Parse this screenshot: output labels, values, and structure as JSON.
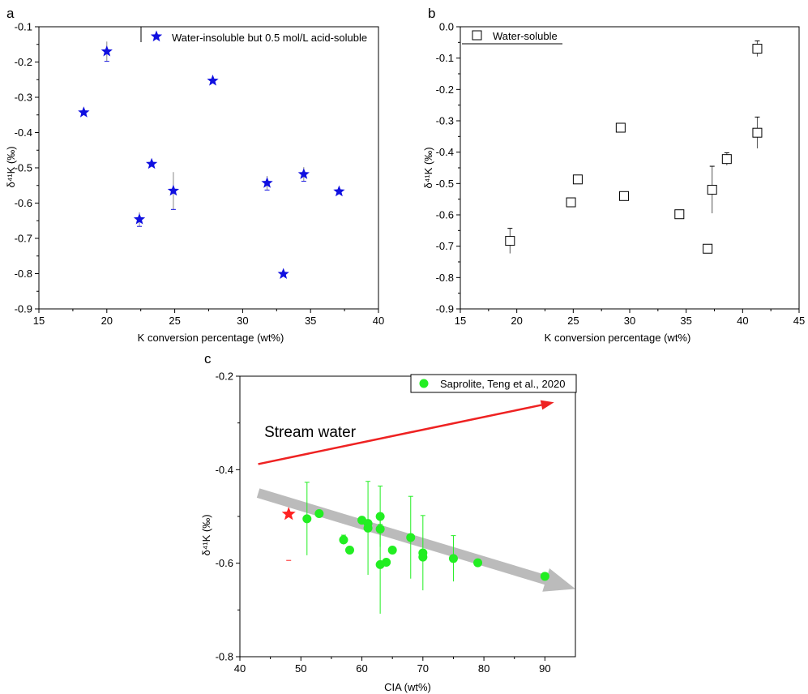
{
  "chart_data": [
    {
      "id": "a",
      "type": "scatter",
      "panel_label": "a",
      "xlabel": "K conversion  percentage  (wt%)",
      "ylabel": "δ⁴¹K (‰)",
      "xlim": [
        15,
        40
      ],
      "ylim": [
        -0.9,
        -0.1
      ],
      "xticks": [
        15,
        20,
        25,
        30,
        35,
        40
      ],
      "yticks": [
        -0.9,
        -0.8,
        -0.7,
        -0.6,
        -0.5,
        -0.4,
        -0.3,
        -0.2,
        -0.1
      ],
      "xtick_labels": [
        "15",
        "20",
        "25",
        "30",
        "35",
        "40"
      ],
      "ytick_labels": [
        "-0.9",
        "-0.8",
        "-0.7",
        "-0.6",
        "-0.5",
        "-0.4",
        "-0.3",
        "-0.2",
        "-0.1"
      ],
      "legend": "Water-insoluble but 0.5 mol/L acid-soluble",
      "marker": "star",
      "color": "#1010e0",
      "points": [
        {
          "x": 18.3,
          "y": -0.343,
          "err": 0.004
        },
        {
          "x": 20.0,
          "y": -0.17,
          "err": 0.028
        },
        {
          "x": 22.4,
          "y": -0.646,
          "err": 0.02
        },
        {
          "x": 23.3,
          "y": -0.489,
          "err": 0.005
        },
        {
          "x": 24.9,
          "y": -0.565,
          "err": 0.053
        },
        {
          "x": 27.8,
          "y": -0.253,
          "err": 0.004
        },
        {
          "x": 31.8,
          "y": -0.543,
          "err": 0.02
        },
        {
          "x": 33.0,
          "y": -0.801,
          "err": 0.004
        },
        {
          "x": 34.5,
          "y": -0.518,
          "err": 0.02
        },
        {
          "x": 37.1,
          "y": -0.567,
          "err": 0.004
        }
      ]
    },
    {
      "id": "b",
      "type": "scatter",
      "panel_label": "b",
      "xlabel": "K conversion  percentage  (wt%)",
      "ylabel": "δ⁴¹K (‰)",
      "xlim": [
        15,
        45
      ],
      "ylim": [
        -0.9,
        0.0
      ],
      "xticks": [
        15,
        20,
        25,
        30,
        35,
        40,
        45
      ],
      "yticks": [
        -0.9,
        -0.8,
        -0.7,
        -0.6,
        -0.5,
        -0.4,
        -0.3,
        -0.2,
        -0.1,
        0.0
      ],
      "xtick_labels": [
        "15",
        "20",
        "25",
        "30",
        "35",
        "40",
        "45"
      ],
      "ytick_labels": [
        "-0.9",
        "-0.8",
        "-0.7",
        "-0.6",
        "-0.5",
        "-0.4",
        "-0.3",
        "-0.2",
        "-0.1",
        "0.0"
      ],
      "legend": "Water-soluble",
      "marker": "open-square",
      "color": "#000000",
      "points": [
        {
          "x": 19.4,
          "y": -0.683,
          "err": 0.04
        },
        {
          "x": 24.8,
          "y": -0.56,
          "err": 0.01
        },
        {
          "x": 25.4,
          "y": -0.487,
          "err": 0.01
        },
        {
          "x": 29.2,
          "y": -0.322,
          "err": 0.01
        },
        {
          "x": 29.5,
          "y": -0.54,
          "err": 0.01
        },
        {
          "x": 34.4,
          "y": -0.598,
          "err": 0.01
        },
        {
          "x": 36.9,
          "y": -0.708,
          "err": 0.01
        },
        {
          "x": 37.3,
          "y": -0.52,
          "err": 0.075
        },
        {
          "x": 38.6,
          "y": -0.422,
          "err": 0.02
        },
        {
          "x": 41.3,
          "y": -0.07,
          "err": 0.025
        },
        {
          "x": 41.3,
          "y": -0.338,
          "err": 0.05
        }
      ]
    },
    {
      "id": "c",
      "type": "scatter",
      "panel_label": "c",
      "xlabel": "CIA (wt%)",
      "ylabel": "δ⁴¹K  (‰)",
      "xlim": [
        40,
        95
      ],
      "ylim": [
        -0.8,
        -0.2
      ],
      "xticks": [
        40,
        50,
        60,
        70,
        80,
        90
      ],
      "yticks": [
        -0.8,
        -0.6,
        -0.4,
        -0.2
      ],
      "xtick_labels": [
        "40",
        "50",
        "60",
        "70",
        "80",
        "90"
      ],
      "ytick_labels": [
        "-0.8",
        "-0.6",
        "-0.4",
        "-0.2"
      ],
      "legend": "Saprolite, Teng et al., 2020",
      "marker": "circle",
      "color": "#22ee22",
      "points": [
        {
          "x": 51,
          "y": -0.505,
          "err": 0.078
        },
        {
          "x": 53,
          "y": -0.494,
          "err": 0.004
        },
        {
          "x": 57,
          "y": -0.55,
          "err": 0.01
        },
        {
          "x": 58,
          "y": -0.572,
          "err": 0.004
        },
        {
          "x": 60,
          "y": -0.508,
          "err": 0.004
        },
        {
          "x": 61,
          "y": -0.515,
          "err": 0.005
        },
        {
          "x": 61,
          "y": -0.525,
          "err": 0.1
        },
        {
          "x": 63,
          "y": -0.5,
          "err": 0.065
        },
        {
          "x": 63,
          "y": -0.527,
          "err": 0.01
        },
        {
          "x": 63,
          "y": -0.603,
          "err": 0.105
        },
        {
          "x": 64,
          "y": -0.598,
          "err": 0.004
        },
        {
          "x": 65,
          "y": -0.572,
          "err": 0.004
        },
        {
          "x": 68,
          "y": -0.545,
          "err": 0.088
        },
        {
          "x": 70,
          "y": -0.578,
          "err": 0.08
        },
        {
          "x": 70,
          "y": -0.587,
          "err": 0.004
        },
        {
          "x": 75,
          "y": -0.59,
          "err": 0.049
        },
        {
          "x": 79,
          "y": -0.599,
          "err": 0.004
        },
        {
          "x": 90,
          "y": -0.628,
          "err": 0.004
        }
      ],
      "highlight_point": {
        "x": 48,
        "y": -0.495,
        "err": 0.005,
        "marker": "star",
        "color": "#ff2222"
      },
      "annotations": [
        {
          "type": "arrow",
          "color": "#ee2222",
          "from": [
            43,
            -0.388
          ],
          "to": [
            91.5,
            -0.256
          ],
          "label": "Stream water",
          "label_at": [
            44,
            -0.33
          ]
        },
        {
          "type": "arrow",
          "color": "#bbbbbb",
          "from": [
            43,
            -0.45
          ],
          "to": [
            95,
            -0.655
          ],
          "label": ""
        }
      ]
    }
  ]
}
